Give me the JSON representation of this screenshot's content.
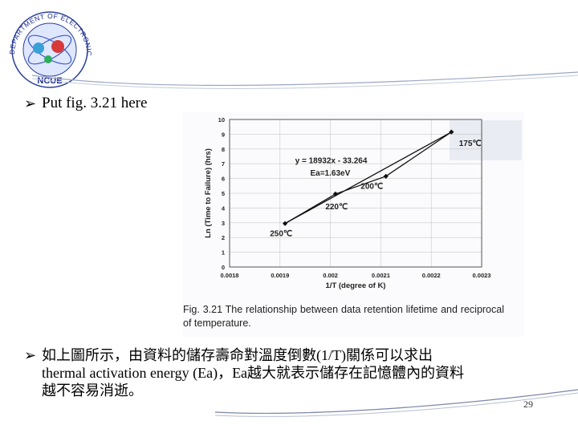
{
  "logo": {
    "text_outer": "DEPARTMENT OF ELECTRONIC ENGINEERING",
    "text_inner": "NCUE"
  },
  "bullets": [
    {
      "text": "Put fig. 3.21 here"
    },
    {
      "lines": [
        "如上圖所示，由資料的儲存壽命對溫度倒數(1/T)關係可以求出",
        "thermal activation energy (Ea)，Ea越大就表示儲存在記憶體內的資料",
        "越不容易消逝。"
      ]
    }
  ],
  "chart_data": {
    "type": "line",
    "xlabel": "1/T (degree of K)",
    "ylabel": "Ln (Time to Failure) (hrs)",
    "xlim": [
      0.0018,
      0.0023
    ],
    "ylim": [
      0,
      10
    ],
    "x_ticks": [
      "0.0018",
      "0.0019",
      "0.002",
      "0.0021",
      "0.0022",
      "0.0023"
    ],
    "y_ticks": [
      "0",
      "1",
      "2",
      "3",
      "4",
      "5",
      "6",
      "7",
      "8",
      "9",
      "10"
    ],
    "grid": true,
    "series": [
      {
        "x": [
          0.00191,
          0.00201,
          0.00211,
          0.00224
        ],
        "y": [
          2.95,
          4.95,
          6.15,
          9.15
        ]
      }
    ],
    "fit_line": {
      "x": [
        0.00191,
        0.00224
      ],
      "y": [
        2.95,
        9.15
      ]
    },
    "equation": "y = 18932x - 33.264",
    "ea_label": "Ea=1.63eV",
    "point_labels": [
      "250℃",
      "220℃",
      "200℃",
      "175℃"
    ],
    "caption": "Fig. 3.21 The relationship between data retention lifetime and reciprocal of temperature."
  },
  "page_number": "29"
}
